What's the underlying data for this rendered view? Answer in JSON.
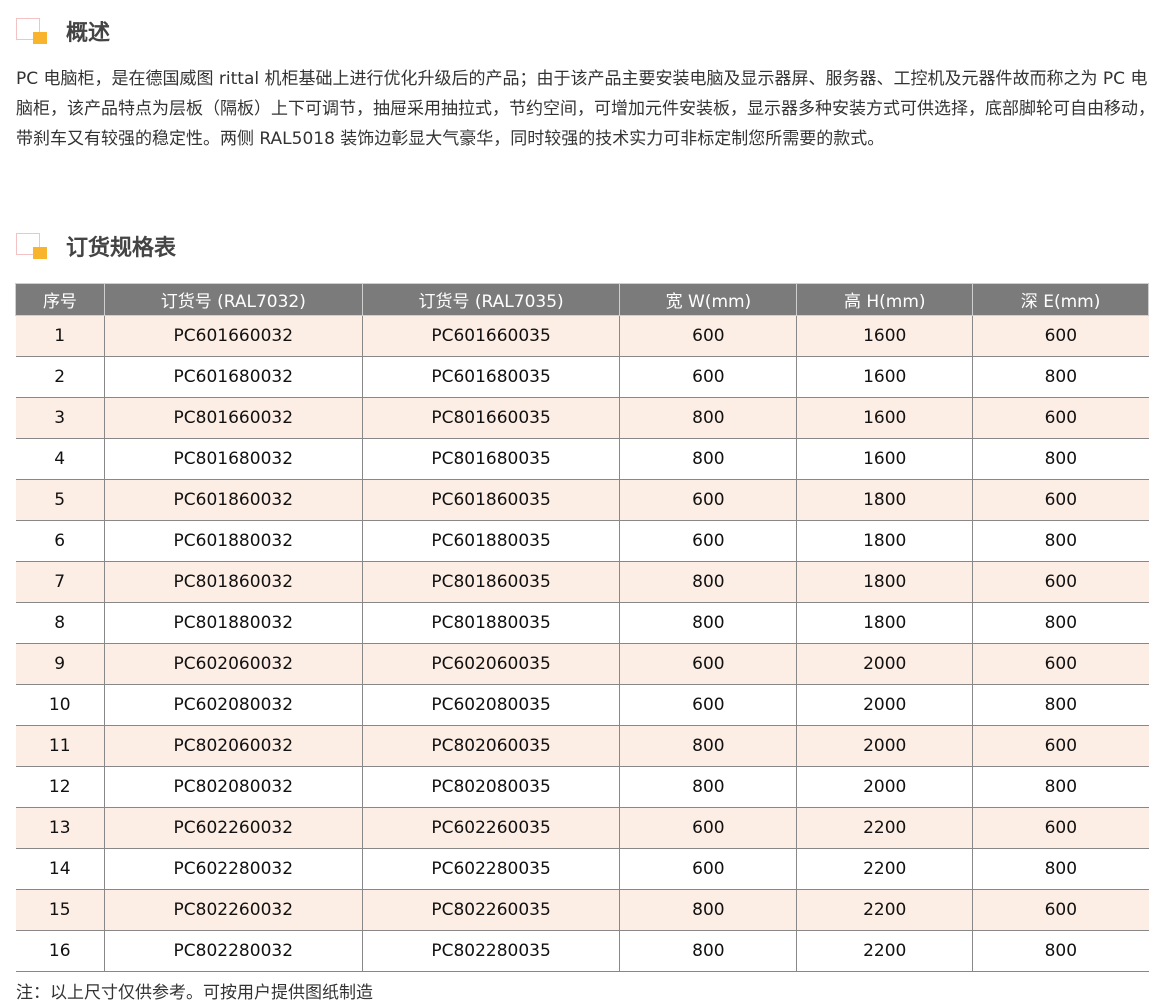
{
  "overview": {
    "title": "概述",
    "text": "PC 电脑柜，是在德国威图 rittal 机柜基础上进行优化升级后的产品；由于该产品主要安装电脑及显示器屏、服务器、工控机及元器件故而称之为 PC 电脑柜，该产品特点为层板（隔板）上下可调节，抽屉采用抽拉式，节约空间，可增加元件安装板，显示器多种安装方式可供选择，底部脚轮可自由移动，带刹车又有较强的稳定性。两侧 RAL5018 装饰边彰显大气豪华，同时较强的技术实力可非标定制您所需要的款式。"
  },
  "spec": {
    "title": "订货规格表",
    "headers": [
      "序号",
      "订货号 (RAL7032)",
      "订货号 (RAL7035)",
      "宽 W(mm)",
      "高 H(mm)",
      "深 E(mm)"
    ],
    "rows": [
      [
        "1",
        "PC601660032",
        "PC601660035",
        "600",
        "1600",
        "600"
      ],
      [
        "2",
        "PC601680032",
        "PC601680035",
        "600",
        "1600",
        "800"
      ],
      [
        "3",
        "PC801660032",
        "PC801660035",
        "800",
        "1600",
        "600"
      ],
      [
        "4",
        "PC801680032",
        "PC801680035",
        "800",
        "1600",
        "800"
      ],
      [
        "5",
        "PC601860032",
        "PC601860035",
        "600",
        "1800",
        "600"
      ],
      [
        "6",
        "PC601880032",
        "PC601880035",
        "600",
        "1800",
        "800"
      ],
      [
        "7",
        "PC801860032",
        "PC801860035",
        "800",
        "1800",
        "600"
      ],
      [
        "8",
        "PC801880032",
        "PC801880035",
        "800",
        "1800",
        "800"
      ],
      [
        "9",
        "PC602060032",
        "PC602060035",
        "600",
        "2000",
        "600"
      ],
      [
        "10",
        "PC602080032",
        "PC602080035",
        "600",
        "2000",
        "800"
      ],
      [
        "11",
        "PC802060032",
        "PC802060035",
        "800",
        "2000",
        "600"
      ],
      [
        "12",
        "PC802080032",
        "PC802080035",
        "800",
        "2000",
        "800"
      ],
      [
        "13",
        "PC602260032",
        "PC602260035",
        "600",
        "2200",
        "600"
      ],
      [
        "14",
        "PC602280032",
        "PC602280035",
        "600",
        "2200",
        "800"
      ],
      [
        "15",
        "PC802260032",
        "PC802260035",
        "800",
        "2200",
        "600"
      ],
      [
        "16",
        "PC802280032",
        "PC802280035",
        "800",
        "2200",
        "800"
      ]
    ],
    "note": "注：以上尺寸仅供参考。可按用户提供图纸制造"
  },
  "colors": {
    "header_bg": "#7b7b7b",
    "odd_row_bg": "#fcede5",
    "accent": "#f7b42c"
  }
}
